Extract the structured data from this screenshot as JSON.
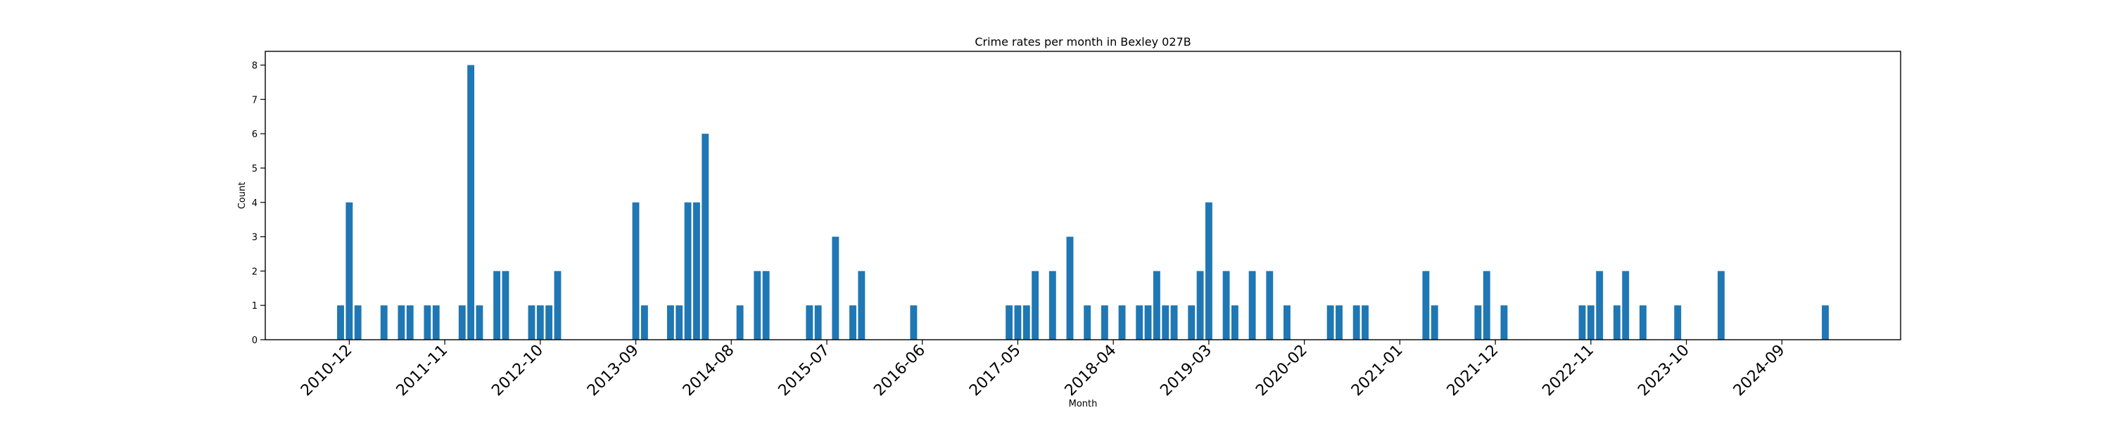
{
  "chart_data": {
    "type": "bar",
    "title": "Crime rates per month in Bexley 027B",
    "xlabel": "Month",
    "ylabel": "Count",
    "ylim": [
      0,
      8.4
    ],
    "yticks": [
      0,
      1,
      2,
      3,
      4,
      5,
      6,
      7,
      8
    ],
    "xtick_labels": [
      "2010-12",
      "2011-11",
      "2012-10",
      "2013-09",
      "2014-08",
      "2015-07",
      "2016-06",
      "2017-05",
      "2018-04",
      "2019-03",
      "2020-02",
      "2021-01",
      "2021-12",
      "2022-11",
      "2023-10",
      "2024-09"
    ],
    "bar_color": "#1f77b4",
    "grid": false,
    "x": [
      "2010-11",
      "2010-12",
      "2011-01",
      "2011-04",
      "2011-06",
      "2011-07",
      "2011-09",
      "2011-10",
      "2012-01",
      "2012-02",
      "2012-03",
      "2012-05",
      "2012-06",
      "2012-09",
      "2012-10",
      "2012-11",
      "2012-12",
      "2013-09",
      "2013-10",
      "2014-01",
      "2014-02",
      "2014-03",
      "2014-04",
      "2014-05",
      "2014-09",
      "2014-11",
      "2014-12",
      "2015-05",
      "2015-06",
      "2015-08",
      "2015-10",
      "2015-11",
      "2016-05",
      "2017-04",
      "2017-05",
      "2017-06",
      "2017-07",
      "2017-09",
      "2017-11",
      "2018-01",
      "2018-03",
      "2018-05",
      "2018-07",
      "2018-08",
      "2018-09",
      "2018-10",
      "2018-11",
      "2019-01",
      "2019-02",
      "2019-03",
      "2019-05",
      "2019-06",
      "2019-08",
      "2019-10",
      "2019-12",
      "2020-05",
      "2020-06",
      "2020-08",
      "2020-09",
      "2021-04",
      "2021-05",
      "2021-10",
      "2021-11",
      "2022-01",
      "2022-10",
      "2022-11",
      "2022-12",
      "2023-02",
      "2023-03",
      "2023-05",
      "2023-09",
      "2024-02",
      "2025-02"
    ],
    "values": [
      1,
      4,
      1,
      1,
      1,
      1,
      1,
      1,
      1,
      8,
      1,
      2,
      2,
      1,
      1,
      1,
      2,
      4,
      1,
      1,
      1,
      4,
      4,
      6,
      1,
      2,
      2,
      1,
      1,
      3,
      1,
      2,
      1,
      1,
      1,
      1,
      2,
      2,
      3,
      1,
      1,
      1,
      1,
      1,
      2,
      1,
      1,
      1,
      2,
      4,
      2,
      1,
      2,
      2,
      1,
      1,
      1,
      1,
      1,
      2,
      1,
      1,
      2,
      1,
      1,
      1,
      2,
      1,
      2,
      1,
      1,
      2,
      1
    ]
  }
}
